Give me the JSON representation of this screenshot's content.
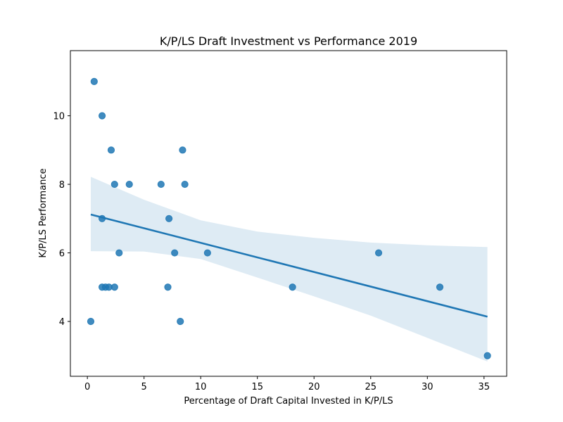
{
  "chart_data": {
    "type": "scatter",
    "title": "K/P/LS Draft Investment vs Performance 2019",
    "xlabel": "Percentage of Draft Capital Invested in K/P/LS",
    "ylabel": "K/P/LS Performance",
    "xlim": [
      -1.5,
      37
    ],
    "ylim": [
      2.4,
      11.9
    ],
    "xticks": [
      0,
      5,
      10,
      15,
      20,
      25,
      30,
      35
    ],
    "yticks": [
      4,
      6,
      8,
      10
    ],
    "grid": false,
    "points": [
      {
        "x": 0.6,
        "y": 11
      },
      {
        "x": 1.3,
        "y": 10
      },
      {
        "x": 2.1,
        "y": 9
      },
      {
        "x": 8.4,
        "y": 9
      },
      {
        "x": 2.4,
        "y": 8
      },
      {
        "x": 3.7,
        "y": 8
      },
      {
        "x": 6.5,
        "y": 8
      },
      {
        "x": 8.6,
        "y": 8
      },
      {
        "x": 1.3,
        "y": 7
      },
      {
        "x": 7.2,
        "y": 7
      },
      {
        "x": 2.8,
        "y": 6
      },
      {
        "x": 7.7,
        "y": 6
      },
      {
        "x": 10.6,
        "y": 6
      },
      {
        "x": 25.7,
        "y": 6
      },
      {
        "x": 1.3,
        "y": 5
      },
      {
        "x": 1.6,
        "y": 5
      },
      {
        "x": 1.9,
        "y": 5
      },
      {
        "x": 2.4,
        "y": 5
      },
      {
        "x": 7.1,
        "y": 5
      },
      {
        "x": 18.1,
        "y": 5
      },
      {
        "x": 31.1,
        "y": 5
      },
      {
        "x": 0.3,
        "y": 4
      },
      {
        "x": 8.2,
        "y": 4
      },
      {
        "x": 35.3,
        "y": 3
      }
    ],
    "regression": {
      "x": [
        0.3,
        35.3
      ],
      "y": [
        7.12,
        4.14
      ]
    },
    "confidence_band": {
      "x": [
        0.3,
        5,
        10,
        15,
        20,
        25,
        30,
        35.3
      ],
      "upper": [
        8.22,
        7.55,
        6.95,
        6.62,
        6.44,
        6.3,
        6.22,
        6.17
      ],
      "lower": [
        6.05,
        6.04,
        5.82,
        5.28,
        4.73,
        4.17,
        3.52,
        2.83
      ]
    },
    "colors": {
      "points": "#1f77b4",
      "line": "#1f77b4",
      "band": "#1f77b4"
    }
  }
}
